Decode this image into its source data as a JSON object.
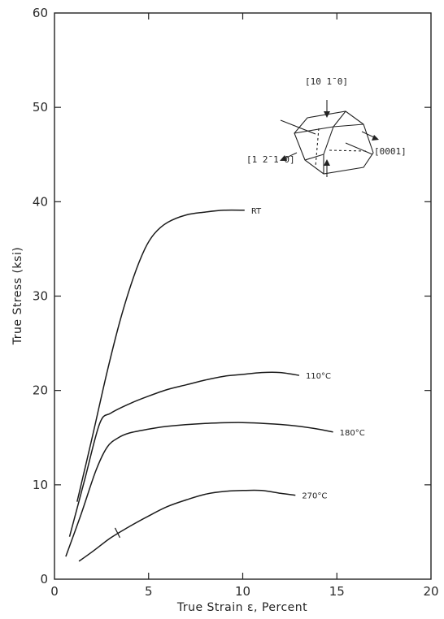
{
  "chart_data": {
    "type": "line",
    "title": "",
    "xlabel": "True Strain ε, Percent",
    "ylabel": "True Stress (ksi)",
    "xlim": [
      0,
      20
    ],
    "ylim": [
      0,
      60
    ],
    "x_ticks": [
      0,
      5,
      10,
      15,
      20
    ],
    "y_ticks": [
      0,
      10,
      20,
      30,
      40,
      50,
      60
    ],
    "x_tick_labels": [
      "0",
      "5",
      "10",
      "15",
      "20"
    ],
    "y_tick_labels": [
      "0",
      "10",
      "20",
      "30",
      "40",
      "50",
      "60"
    ],
    "grid": false,
    "series": [
      {
        "name": "RT",
        "x": [
          1.2,
          2.0,
          2.8,
          3.5,
          4.2,
          4.8,
          5.3,
          6.0,
          7.0,
          8.0,
          9.0,
          10.1
        ],
        "y": [
          8.2,
          15.0,
          22.0,
          27.5,
          32.0,
          35.0,
          36.6,
          37.8,
          38.6,
          38.9,
          39.1,
          39.1
        ]
      },
      {
        "name": "110°C",
        "x": [
          0.8,
          1.6,
          2.4,
          3.0,
          4.0,
          5.0,
          6.0,
          7.0,
          8.0,
          9.0,
          10.0,
          11.0,
          12.0,
          13.0
        ],
        "y": [
          4.5,
          10.5,
          16.5,
          17.6,
          18.6,
          19.4,
          20.1,
          20.6,
          21.1,
          21.5,
          21.7,
          21.9,
          21.9,
          21.6
        ]
      },
      {
        "name": "180°C",
        "x": [
          0.6,
          1.4,
          2.2,
          2.8,
          3.4,
          4.0,
          5.0,
          6.0,
          8.0,
          10.0,
          12.0,
          13.0,
          14.0,
          14.8
        ],
        "y": [
          2.4,
          6.8,
          11.5,
          14.0,
          15.0,
          15.5,
          15.9,
          16.2,
          16.5,
          16.6,
          16.4,
          16.2,
          15.9,
          15.6
        ]
      },
      {
        "name": "270°C",
        "x": [
          1.3,
          2.0,
          3.0,
          4.0,
          5.0,
          6.0,
          7.0,
          8.0,
          9.0,
          10.0,
          11.0,
          12.0,
          12.8
        ],
        "y": [
          1.9,
          2.9,
          4.4,
          5.6,
          6.7,
          7.7,
          8.4,
          9.0,
          9.3,
          9.4,
          9.4,
          9.1,
          8.9
        ]
      }
    ],
    "inset": {
      "labels": [
        "[10 1̄ 0]",
        "[1 2̄ 1 0]",
        "[0001]"
      ]
    }
  }
}
